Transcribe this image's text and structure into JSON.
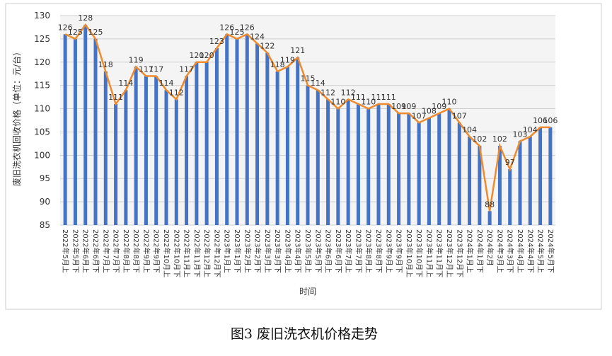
{
  "chart_data": {
    "type": "bar-line",
    "y_label": "废旧洗衣机回收价格（单位：元/台）",
    "x_label": "时间",
    "caption": "图3  废旧洗衣机价格走势",
    "categories": [
      "2022年5月上",
      "2022年5月下",
      "2022年6月上",
      "2022年6月下",
      "2022年7月上",
      "2022年7月下",
      "2022年8月上",
      "2022年8月下",
      "2022年9月上",
      "2022年9月下",
      "2022年10月上",
      "2022年10月下",
      "2022年11月上",
      "2022年11月下",
      "2022年12月上",
      "2022年12月下",
      "2023年1月上",
      "2023年1月下",
      "2023年2月上",
      "2023年2月下",
      "2023年3月上",
      "2023年3月下",
      "2023年4月上",
      "2023年4月下",
      "2023年5月上",
      "2023年5月下",
      "2023年6月上",
      "2023年6月下",
      "2023年7月上",
      "2023年7月下",
      "2023年8月上",
      "2023年8月下",
      "2023年9月上",
      "2023年9月下",
      "2023年10月上",
      "2023年10月下",
      "2023年11月上",
      "2023年11月下",
      "2023年12月上",
      "2023年12月下",
      "2024年1月上",
      "2024年1月下",
      "2024年2月",
      "2024年3月上",
      "2024年3月下",
      "2024年4月上",
      "2024年4月下",
      "2024年5月上",
      "2024年5月下"
    ],
    "values": [
      126,
      125,
      128,
      125,
      118,
      111,
      114,
      119,
      117,
      117,
      114,
      112,
      117,
      120,
      120,
      123,
      126,
      125,
      126,
      124,
      122,
      118,
      119,
      121,
      115,
      114,
      112,
      110,
      112,
      111,
      110,
      111,
      111,
      109,
      109,
      107,
      108,
      109,
      110,
      107,
      104,
      102,
      88,
      102,
      97,
      103,
      104,
      106,
      106
    ],
    "bar_color": "#4472c4",
    "line_color": "#ed8b2e",
    "ylim": [
      85,
      130
    ],
    "yticks": [
      85,
      90,
      95,
      100,
      105,
      110,
      115,
      120,
      125,
      130
    ],
    "grid": true
  }
}
